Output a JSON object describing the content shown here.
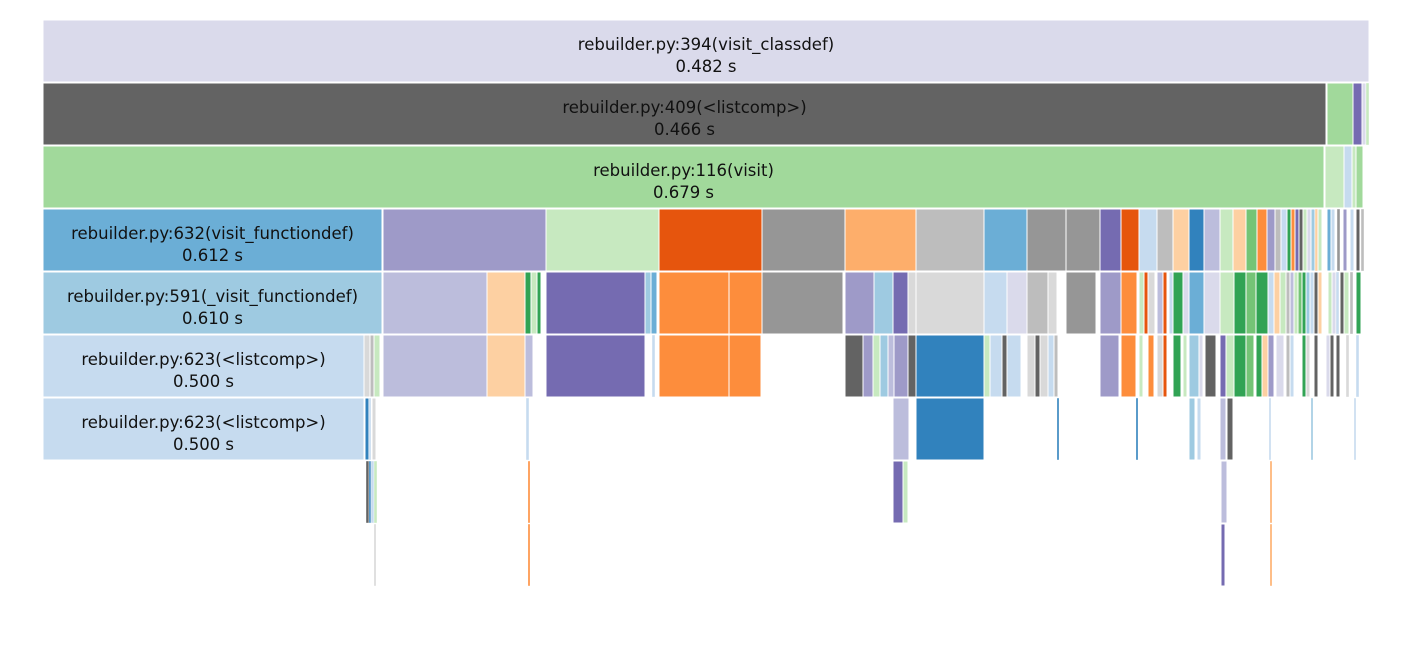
{
  "frames": [
    {
      "name": "rebuilder.py:394(visit_classdef)",
      "time": "0.482 s",
      "color": "#dadaeb"
    },
    {
      "name": "rebuilder.py:409(<listcomp>)",
      "time": "0.466 s",
      "color": "#636363"
    },
    {
      "name": "rebuilder.py:116(visit)",
      "time": "0.679 s",
      "color": "#a1d99b"
    },
    {
      "name": "rebuilder.py:632(visit_functiondef)",
      "time": "0.612 s",
      "color": "#6baed6"
    },
    {
      "name": "rebuilder.py:591(_visit_functiondef)",
      "time": "0.610 s",
      "color": "#9ecae1"
    },
    {
      "name": "rebuilder.py:623(<listcomp>)",
      "time": "0.500 s",
      "color": "#c6dbef"
    },
    {
      "name": "rebuilder.py:623(<listcomp>)",
      "time": "0.500 s",
      "color": "#c6dbef"
    }
  ]
}
